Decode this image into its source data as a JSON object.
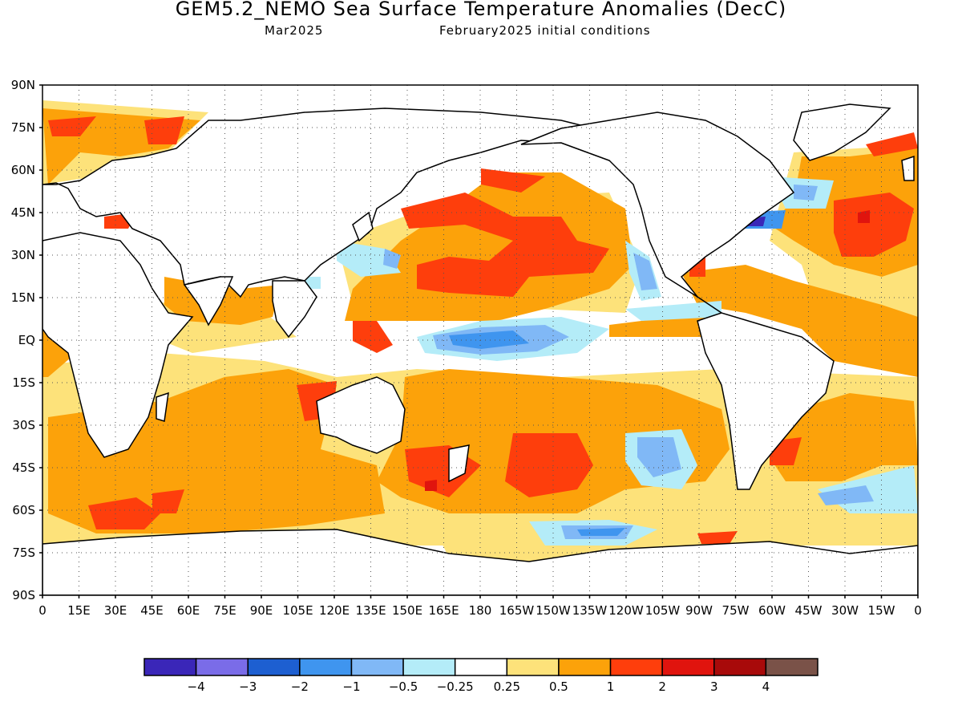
{
  "title": "GEM5.2_NEMO Sea Surface Temperature Anomalies (DecC)",
  "subtitle_month": "Mar2025",
  "subtitle_init": "February2025 initial conditions",
  "map": {
    "lat_labels": [
      "90N",
      "75N",
      "60N",
      "45N",
      "30N",
      "15N",
      "EQ",
      "15S",
      "30S",
      "45S",
      "60S",
      "75S",
      "90S"
    ],
    "lon_labels": [
      "0",
      "15E",
      "30E",
      "45E",
      "60E",
      "75E",
      "90E",
      "105E",
      "120E",
      "135E",
      "150E",
      "165E",
      "180",
      "165W",
      "150W",
      "135W",
      "120W",
      "105W",
      "90W",
      "75W",
      "60W",
      "45W",
      "30W",
      "15W",
      "0"
    ],
    "projection": "equirectangular, 0 to 360 longitude",
    "gridlines": "dotted every 15 degrees"
  },
  "colorbar": {
    "colors": [
      "#3a26b8",
      "#7a6ce8",
      "#1d5fd1",
      "#3f95ef",
      "#80b8f6",
      "#b4ecf8",
      "#ffffff",
      "#fde27a",
      "#fca20a",
      "#fe3e0c",
      "#e0140e",
      "#a80a0a",
      "#7a5248"
    ],
    "tick_labels": [
      "−4",
      "−3",
      "−2",
      "−1",
      "−0.5",
      "−0.25",
      "0.25",
      "0.5",
      "1",
      "2",
      "3",
      "4"
    ]
  }
}
